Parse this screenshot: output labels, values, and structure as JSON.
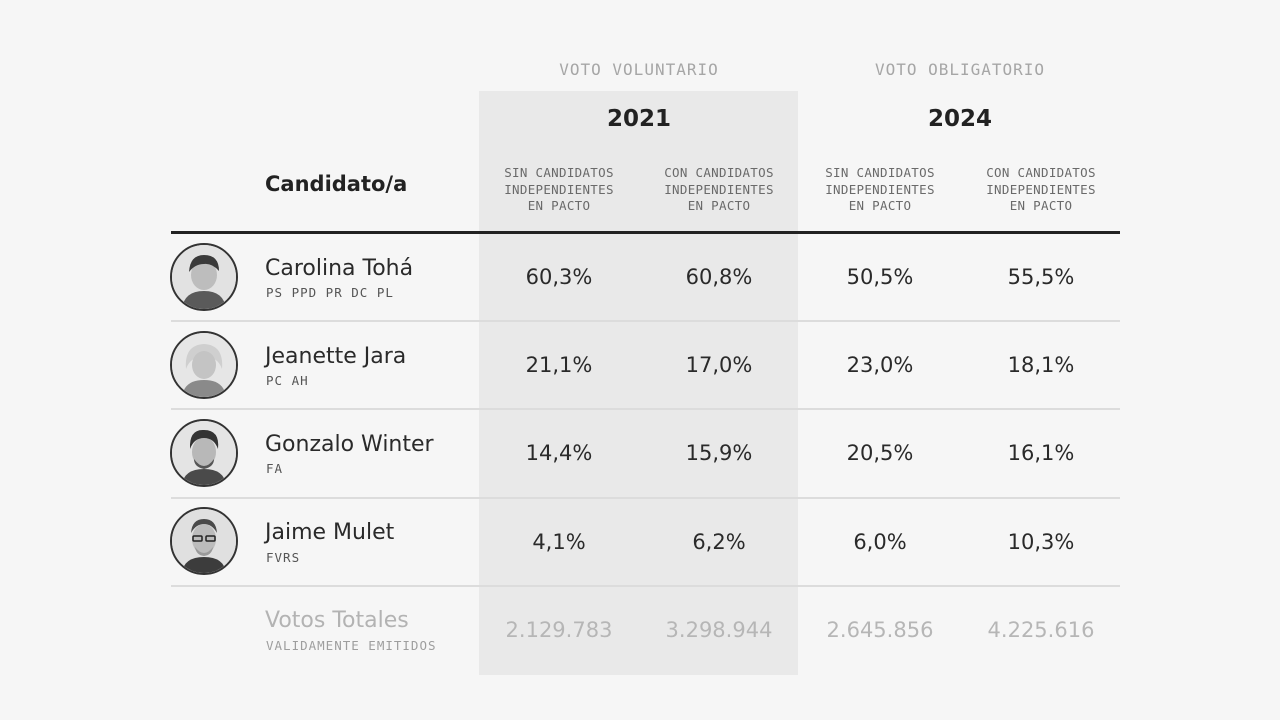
{
  "header": {
    "candidate_col": "Candidato/a",
    "groups": [
      {
        "label": "VOTO VOLUNTARIO",
        "year": "2021"
      },
      {
        "label": "VOTO OBLIGATORIO",
        "year": "2024"
      }
    ],
    "columns": [
      "SIN CANDIDATOS\nINDEPENDIENTES\nEN PACTO",
      "CON CANDIDATOS\nINDEPENDIENTES\nEN PACTO",
      "SIN CANDIDATOS\nINDEPENDIENTES\nEN PACTO",
      "CON CANDIDATOS\nINDEPENDIENTES\nEN PACTO"
    ]
  },
  "rows": [
    {
      "name": "Carolina Tohá",
      "parties": "PS PPD PR DC PL",
      "values": [
        "60,3%",
        "60,8%",
        "50,5%",
        "55,5%"
      ],
      "avatar": "portrait-icon"
    },
    {
      "name": "Jeanette Jara",
      "parties": "PC AH",
      "values": [
        "21,1%",
        "17,0%",
        "23,0%",
        "18,1%"
      ],
      "avatar": "portrait-icon"
    },
    {
      "name": "Gonzalo Winter",
      "parties": "FA",
      "values": [
        "14,4%",
        "15,9%",
        "20,5%",
        "16,1%"
      ],
      "avatar": "portrait-icon"
    },
    {
      "name": "Jaime Mulet",
      "parties": "FVRS",
      "values": [
        "4,1%",
        "6,2%",
        "6,0%",
        "10,3%"
      ],
      "avatar": "portrait-icon"
    }
  ],
  "totals": {
    "label": "Votos Totales",
    "sublabel": "VALIDAMENTE EMITIDOS",
    "values": [
      "2.129.783",
      "3.298.944",
      "2.645.856",
      "4.225.616"
    ]
  },
  "chart_data": {
    "type": "table",
    "columns": [
      "2021 Sin candidatos independientes en pacto",
      "2021 Con candidatos independientes en pacto",
      "2024 Sin candidatos independientes en pacto",
      "2024 Con candidatos independientes en pacto"
    ],
    "series": [
      {
        "name": "Carolina Tohá",
        "values": [
          60.3,
          60.8,
          50.5,
          55.5
        ]
      },
      {
        "name": "Jeanette Jara",
        "values": [
          21.1,
          17.0,
          23.0,
          18.1
        ]
      },
      {
        "name": "Gonzalo Winter",
        "values": [
          14.4,
          15.9,
          20.5,
          16.1
        ]
      },
      {
        "name": "Jaime Mulet",
        "values": [
          4.1,
          6.2,
          6.0,
          10.3
        ]
      }
    ],
    "totals": [
      2129783,
      3298944,
      2645856,
      4225616
    ]
  }
}
